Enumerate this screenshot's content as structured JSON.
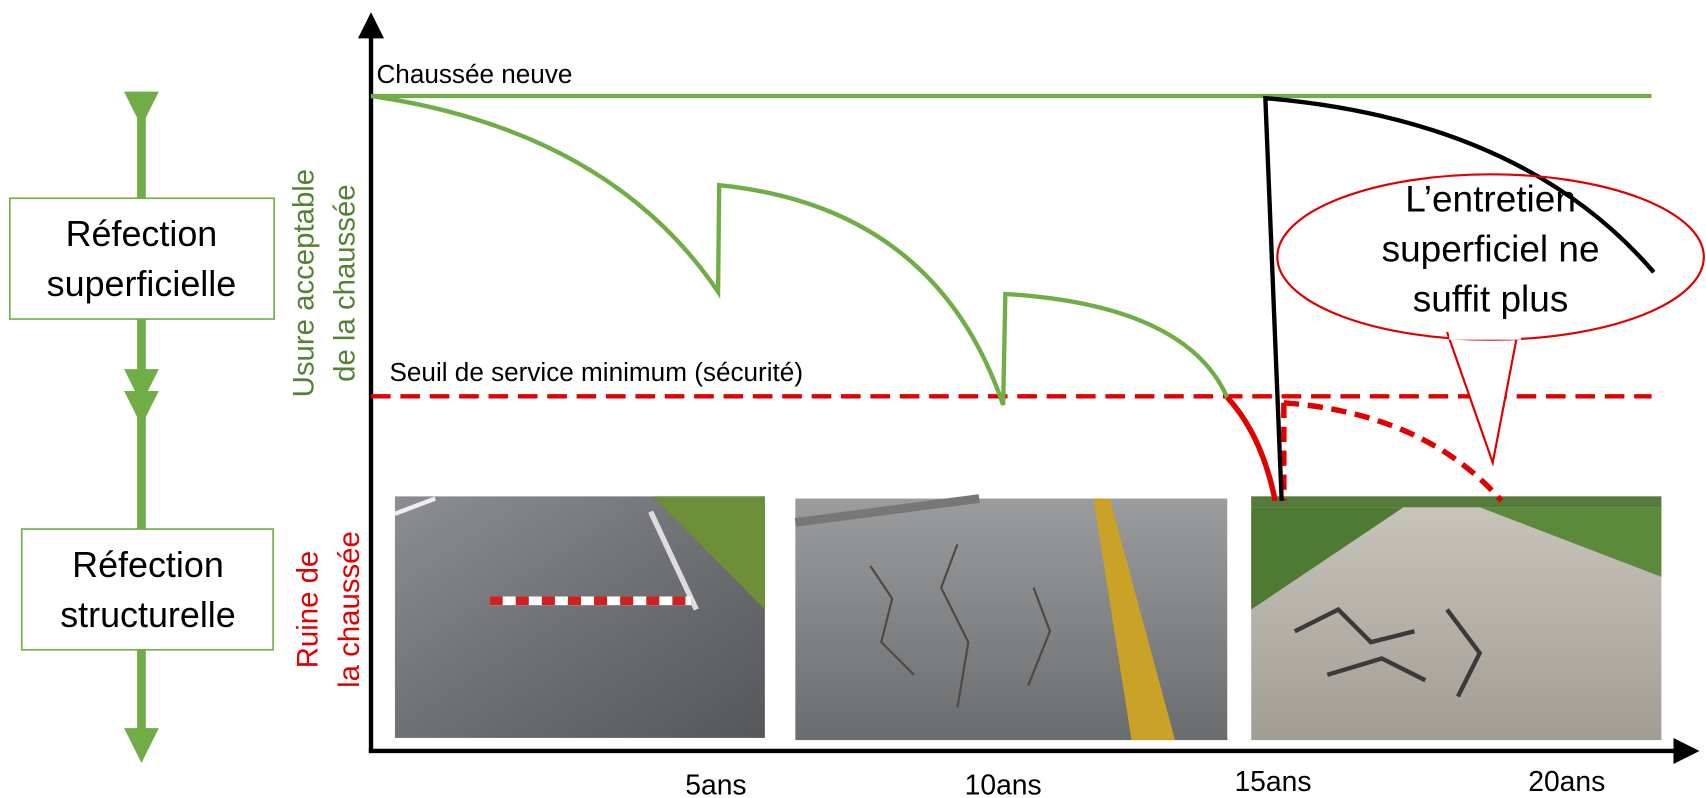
{
  "left": {
    "top_box": [
      "Réfection",
      "superficielle"
    ],
    "bottom_box": [
      "Réfection",
      "structurelle"
    ]
  },
  "side_labels": {
    "acceptable": [
      "Usure acceptable",
      "de la chaussée"
    ],
    "ruin": [
      "Ruine de",
      "la chaussée"
    ]
  },
  "lines": {
    "new": "Chaussée neuve",
    "threshold": "Seuil de service minimum (sécurité)"
  },
  "x_labels": [
    "5ans",
    "10ans",
    "15ans",
    "20ans"
  ],
  "callout": [
    "L’entretien",
    "superficiel ne",
    "suffit plus"
  ]
}
